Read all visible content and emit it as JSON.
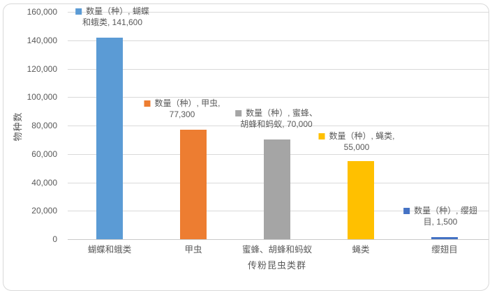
{
  "chart_data": {
    "type": "bar",
    "title": "",
    "xlabel": "传粉昆虫类群",
    "ylabel": "物种数",
    "series_name": "数量（种）",
    "categories": [
      "蝴蝶和蛾类",
      "甲虫",
      "蜜蜂、胡蜂和蚂蚁",
      "蝇类",
      "缨翅目"
    ],
    "values": [
      141600,
      77300,
      70000,
      55000,
      1500
    ],
    "value_labels": [
      "141,600",
      "77,300",
      "70,000",
      "55,000",
      "1,500"
    ],
    "colors": [
      "#5B9BD5",
      "#ED7D31",
      "#A5A5A5",
      "#FFC000",
      "#4472C4"
    ],
    "ylim": [
      0,
      160000
    ],
    "ytick_interval": 20000,
    "y_ticks": [
      "0",
      "20,000",
      "40,000",
      "60,000",
      "80,000",
      "100,000",
      "120,000",
      "140,000",
      "160,000"
    ],
    "grid": true,
    "legend_position": "none",
    "data_labels": [
      {
        "line1": "数量（种）, 蝴蝶",
        "line2": "和蛾类, 141,600"
      },
      {
        "line1": "数量（种）, 甲虫,",
        "line2": "77,300"
      },
      {
        "line1": "数量（种）, 蜜蜂、",
        "line2": "胡蜂和蚂蚁, 70,000"
      },
      {
        "line1": "数量（种）, 蝇类,",
        "line2": "55,000"
      },
      {
        "line1": "数量（种）, 缨翅",
        "line2": "目, 1,500"
      }
    ],
    "colors_meta": {
      "text": "#595959",
      "gridline": "#D9D9D9",
      "frame_border": "#D9D9D9"
    }
  }
}
